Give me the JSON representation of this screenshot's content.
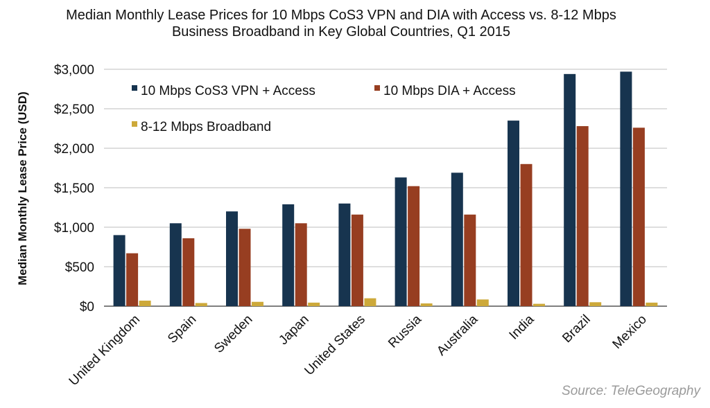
{
  "chart_data": {
    "type": "bar",
    "title_lines": [
      "Median Monthly Lease Prices for 10 Mbps CoS3 VPN and DIA with Access vs. 8-12 Mbps",
      "Business Broadband in Key Global Countries, Q1 2015"
    ],
    "ylabel": "Median Monthly Lease Price (USD)",
    "xlabel": "",
    "ylim": [
      0,
      3000
    ],
    "y_ticks": [
      {
        "value": 0,
        "label": "$0"
      },
      {
        "value": 500,
        "label": "$500"
      },
      {
        "value": 1000,
        "label": "$1,000"
      },
      {
        "value": 1500,
        "label": "$1,500"
      },
      {
        "value": 2000,
        "label": "$2,000"
      },
      {
        "value": 2500,
        "label": "$2,500"
      },
      {
        "value": 3000,
        "label": "$3,000"
      }
    ],
    "grid": true,
    "legend_position": "top-left",
    "categories": [
      "United Kingdom",
      "Spain",
      "Sweden",
      "Japan",
      "United States",
      "Russia",
      "Australia",
      "India",
      "Brazil",
      "Mexico"
    ],
    "series": [
      {
        "name": "10 Mbps CoS3 VPN + Access",
        "color": "#17344f",
        "values": [
          900,
          1050,
          1200,
          1290,
          1300,
          1630,
          1690,
          2350,
          2940,
          2970
        ]
      },
      {
        "name": "10 Mbps DIA + Access",
        "color": "#973e21",
        "values": [
          670,
          860,
          980,
          1050,
          1160,
          1520,
          1160,
          1800,
          2280,
          2260
        ]
      },
      {
        "name": "8-12 Mbps Broadband",
        "color": "#cda93a",
        "values": [
          70,
          40,
          55,
          45,
          100,
          35,
          85,
          30,
          50,
          45
        ]
      }
    ],
    "source": "Source: TeleGeography"
  }
}
